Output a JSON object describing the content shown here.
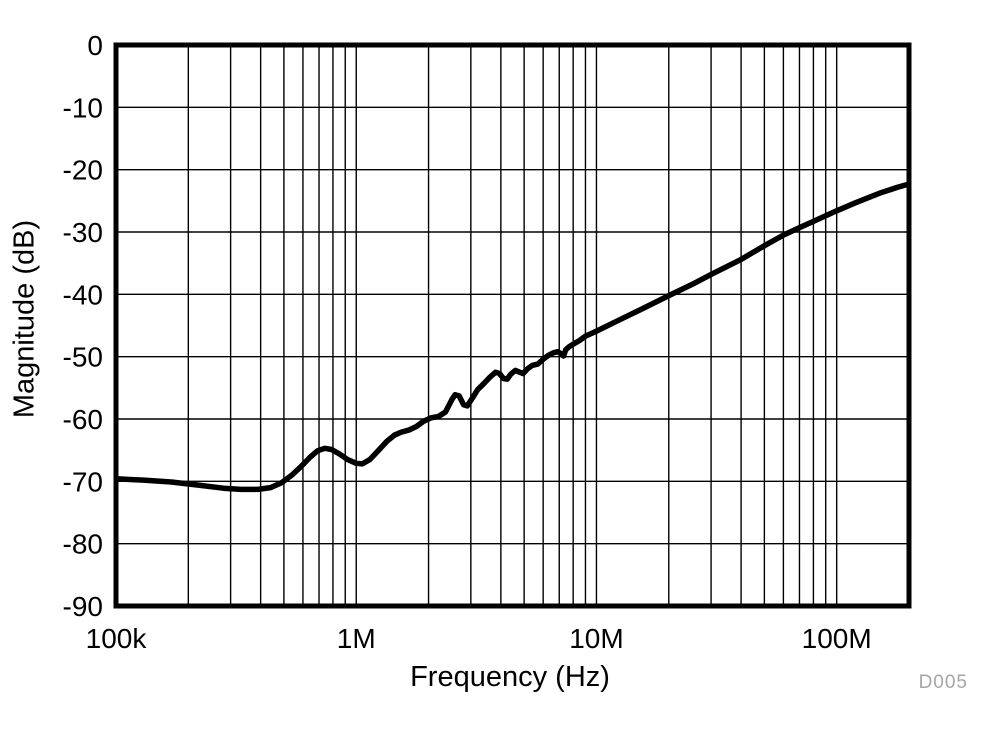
{
  "figure": {
    "background": "#ffffff",
    "watermark": {
      "text": "D005",
      "color": "#a6a6a6"
    }
  },
  "chart_data": {
    "type": "line",
    "title": "",
    "xlabel": "Frequency (Hz)",
    "ylabel": "Magnitude (dB)",
    "x_scale": "log",
    "xlim": [
      100000,
      200000000
    ],
    "ylim": [
      -90,
      0
    ],
    "grid": {
      "horizontal_step_db": 10,
      "vertical": "log-minor-decades",
      "visible": true
    },
    "legend": "none",
    "line_color": "#000000",
    "grid_color": "#000000",
    "frame_color": "#000000",
    "x_ticks": [
      {
        "value": 100000,
        "label": "100k"
      },
      {
        "value": 1000000,
        "label": "1M"
      },
      {
        "value": 10000000,
        "label": "10M"
      },
      {
        "value": 100000000,
        "label": "100M"
      }
    ],
    "y_ticks": [
      {
        "value": 0,
        "label": "0"
      },
      {
        "value": -10,
        "label": "-10"
      },
      {
        "value": -20,
        "label": "-20"
      },
      {
        "value": -30,
        "label": "-30"
      },
      {
        "value": -40,
        "label": "-40"
      },
      {
        "value": -50,
        "label": "-50"
      },
      {
        "value": -60,
        "label": "-60"
      },
      {
        "value": -70,
        "label": "-70"
      },
      {
        "value": -80,
        "label": "-80"
      },
      {
        "value": -90,
        "label": "-90"
      }
    ],
    "series": [
      {
        "name": "magnitude",
        "points": [
          [
            100000,
            -69.6
          ],
          [
            130000,
            -69.8
          ],
          [
            170000,
            -70.1
          ],
          [
            220000,
            -70.6
          ],
          [
            280000,
            -71.1
          ],
          [
            330000,
            -71.3
          ],
          [
            390000,
            -71.3
          ],
          [
            440000,
            -71.0
          ],
          [
            490000,
            -70.2
          ],
          [
            540000,
            -69.0
          ],
          [
            590000,
            -67.6
          ],
          [
            640000,
            -66.2
          ],
          [
            690000,
            -65.1
          ],
          [
            740000,
            -64.7
          ],
          [
            790000,
            -64.9
          ],
          [
            850000,
            -65.6
          ],
          [
            920000,
            -66.5
          ],
          [
            1000000,
            -67.1
          ],
          [
            1060000,
            -67.2
          ],
          [
            1140000,
            -66.5
          ],
          [
            1240000,
            -65.0
          ],
          [
            1340000,
            -63.6
          ],
          [
            1440000,
            -62.6
          ],
          [
            1540000,
            -62.1
          ],
          [
            1650000,
            -61.8
          ],
          [
            1780000,
            -61.2
          ],
          [
            1900000,
            -60.4
          ],
          [
            2050000,
            -59.8
          ],
          [
            2200000,
            -59.6
          ],
          [
            2350000,
            -58.9
          ],
          [
            2500000,
            -56.9
          ],
          [
            2580000,
            -56.1
          ],
          [
            2680000,
            -56.3
          ],
          [
            2800000,
            -57.7
          ],
          [
            2900000,
            -57.9
          ],
          [
            3050000,
            -56.6
          ],
          [
            3200000,
            -55.3
          ],
          [
            3400000,
            -54.3
          ],
          [
            3600000,
            -53.3
          ],
          [
            3800000,
            -52.5
          ],
          [
            3950000,
            -52.7
          ],
          [
            4100000,
            -53.5
          ],
          [
            4250000,
            -53.6
          ],
          [
            4400000,
            -52.8
          ],
          [
            4600000,
            -52.2
          ],
          [
            4800000,
            -52.5
          ],
          [
            4950000,
            -52.7
          ],
          [
            5150000,
            -52.0
          ],
          [
            5400000,
            -51.4
          ],
          [
            5700000,
            -51.2
          ],
          [
            6000000,
            -50.4
          ],
          [
            6300000,
            -49.8
          ],
          [
            6600000,
            -49.4
          ],
          [
            6900000,
            -49.2
          ],
          [
            7100000,
            -49.5
          ],
          [
            7300000,
            -49.9
          ],
          [
            7450000,
            -48.9
          ],
          [
            7700000,
            -48.4
          ],
          [
            8000000,
            -48.0
          ],
          [
            8500000,
            -47.4
          ],
          [
            9000000,
            -46.7
          ],
          [
            10000000,
            -45.9
          ],
          [
            12000000,
            -44.4
          ],
          [
            15000000,
            -42.6
          ],
          [
            20000000,
            -40.2
          ],
          [
            25000000,
            -38.4
          ],
          [
            30000000,
            -36.8
          ],
          [
            40000000,
            -34.4
          ],
          [
            50000000,
            -32.2
          ],
          [
            60000000,
            -30.5
          ],
          [
            70000000,
            -29.3
          ],
          [
            80000000,
            -28.3
          ],
          [
            90000000,
            -27.4
          ],
          [
            100000000,
            -26.6
          ],
          [
            120000000,
            -25.3
          ],
          [
            150000000,
            -23.8
          ],
          [
            180000000,
            -22.8
          ],
          [
            200000000,
            -22.3
          ]
        ]
      }
    ]
  }
}
